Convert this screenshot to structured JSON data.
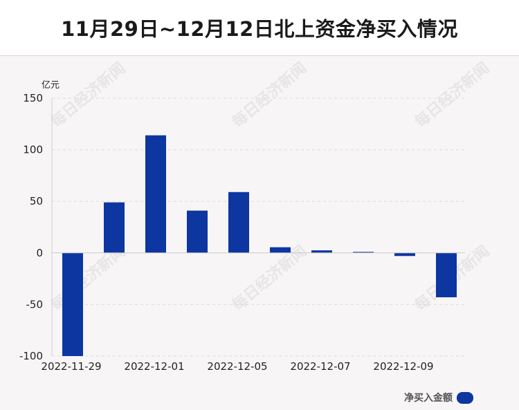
{
  "header": {
    "title": "11月29日~12月12日北上资金净买入情况"
  },
  "watermark": {
    "text": "每日经济新闻"
  },
  "legend": {
    "label": "净买入金额"
  },
  "colors": {
    "bar": "#0d36a1",
    "grid": "#dcdcdc",
    "axis_text": "#222222"
  },
  "chart_data": {
    "type": "bar",
    "title": "11月29日~12月12日北上资金净买入情况",
    "ylabel": "亿元",
    "ylim": [
      -100,
      150
    ],
    "yticks": [
      150,
      100,
      50,
      0,
      -50,
      -100
    ],
    "x_tick_labels": [
      "2022-11-29",
      "2022-12-01",
      "2022-12-05",
      "2022-12-07",
      "2022-12-09"
    ],
    "categories": [
      "2022-11-29",
      "2022-11-30",
      "2022-12-01",
      "2022-12-02",
      "2022-12-05",
      "2022-12-06",
      "2022-12-07",
      "2022-12-08",
      "2022-12-09",
      "2022-12-12"
    ],
    "series": [
      {
        "name": "净买入金额",
        "values": [
          -100,
          49,
          114,
          41,
          59,
          5.5,
          2.5,
          1,
          -3,
          -43
        ]
      }
    ],
    "grid": true,
    "legend_position": "bottom-right"
  }
}
